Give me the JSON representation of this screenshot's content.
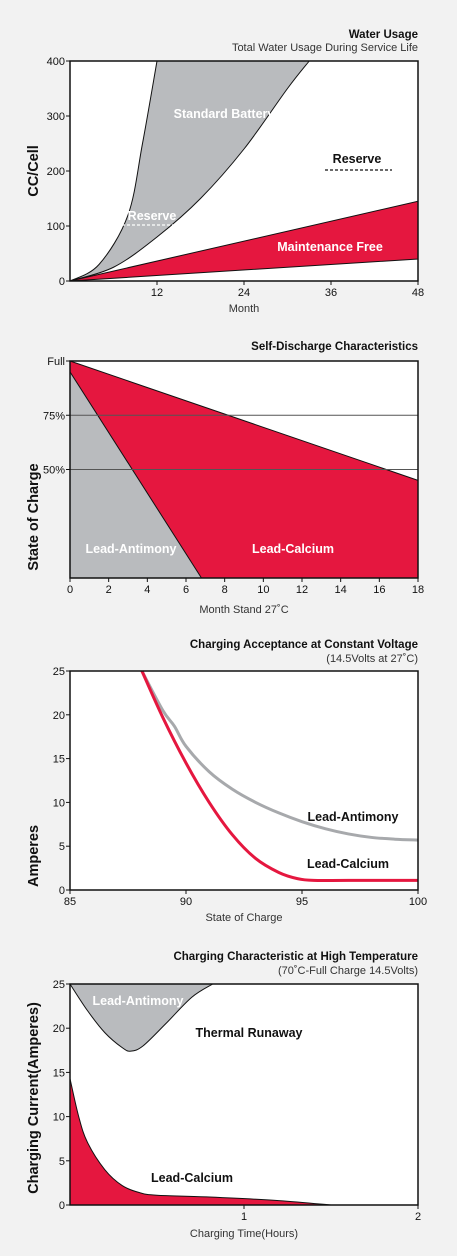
{
  "colors": {
    "red": "#e5173f",
    "gray": "#b9bbbe",
    "grayline": "#a7a9ac",
    "frame": "#111111",
    "bg": "#f2f2f2"
  },
  "chart_data": [
    {
      "type": "area",
      "title": "Water Usage",
      "subtitle": "Total Water Usage During Service Life",
      "xlabel": "Month",
      "ylabel": "CC/Cell",
      "xlim": [
        0,
        48
      ],
      "ylim": [
        0,
        400
      ],
      "xticks": [
        12,
        24,
        36,
        48
      ],
      "yticks": [
        0,
        100,
        200,
        300,
        400
      ],
      "series": [
        {
          "name": "Standard Battery",
          "upper": [
            [
              0,
              0
            ],
            [
              4,
              30
            ],
            [
              8,
              120
            ],
            [
              10,
              250
            ],
            [
              12,
              400
            ]
          ],
          "lower": [
            [
              0,
              0
            ],
            [
              6,
              25
            ],
            [
              12,
              80
            ],
            [
              18,
              150
            ],
            [
              24,
              240
            ],
            [
              30,
              350
            ],
            [
              33,
              400
            ]
          ]
        },
        {
          "name": "Maintenance Free",
          "upper": [
            [
              0,
              0
            ],
            [
              48,
              145
            ]
          ],
          "lower": [
            [
              0,
              0
            ],
            [
              48,
              40
            ]
          ]
        }
      ],
      "labels": {
        "standard": "Standard Battery",
        "maintenance": "Maintenance Free",
        "reserve_left": "Reserve",
        "reserve_right": "Reserve"
      }
    },
    {
      "type": "area",
      "title": "Self-Discharge Characteristics",
      "xlabel": "Month Stand 27˚C",
      "ylabel": "State of Charge",
      "xlim": [
        0,
        18
      ],
      "ylim": [
        0,
        100
      ],
      "xticks": [
        0,
        2,
        4,
        6,
        8,
        10,
        12,
        14,
        16,
        18
      ],
      "yticks": [
        {
          "value": 50,
          "label": "50%"
        },
        {
          "value": 75,
          "label": "75%"
        },
        {
          "value": 100,
          "label": "Full"
        }
      ],
      "series": [
        {
          "name": "Lead-Calcium",
          "points": [
            [
              0,
              100
            ],
            [
              18,
              45
            ]
          ]
        },
        {
          "name": "Lead-Antimony",
          "points": [
            [
              0,
              95
            ],
            [
              6.8,
              0
            ]
          ]
        }
      ],
      "labels": {
        "antimony": "Lead-Antimony",
        "calcium": "Lead-Calcium"
      }
    },
    {
      "type": "line",
      "title": "Charging Acceptance at Constant Voltage",
      "subtitle": "(14.5Volts at 27˚C)",
      "xlabel": "State of Charge",
      "ylabel": "Amperes",
      "xlim": [
        85,
        100
      ],
      "ylim": [
        0,
        25
      ],
      "xticks": [
        85,
        90,
        95,
        100
      ],
      "yticks": [
        0,
        5,
        10,
        15,
        20,
        25
      ],
      "series": [
        {
          "name": "Lead-Antimony",
          "points": [
            [
              88.1,
              25
            ],
            [
              89,
              20.5
            ],
            [
              89.5,
              18.7
            ],
            [
              90,
              16.4
            ],
            [
              91,
              13.5
            ],
            [
              92,
              11.5
            ],
            [
              93,
              10
            ],
            [
              94,
              8.8
            ],
            [
              95,
              7.8
            ],
            [
              96,
              7
            ],
            [
              97,
              6.4
            ],
            [
              98,
              6
            ],
            [
              99,
              5.8
            ],
            [
              100,
              5.7
            ]
          ]
        },
        {
          "name": "Lead-Calcium",
          "points": [
            [
              88.1,
              25
            ],
            [
              89,
              19.7
            ],
            [
              90,
              14.5
            ],
            [
              91,
              10
            ],
            [
              92,
              6.3
            ],
            [
              93,
              3.6
            ],
            [
              94,
              2
            ],
            [
              94.8,
              1.3
            ],
            [
              95.5,
              1.1
            ],
            [
              97,
              1.1
            ],
            [
              100,
              1.1
            ]
          ]
        }
      ],
      "labels": {
        "antimony": "Lead-Antimony",
        "calcium": "Lead-Calcium"
      }
    },
    {
      "type": "area",
      "title": "Charging Characteristic at High Temperature",
      "subtitle": "(70˚C-Full Charge 14.5Volts)",
      "xlabel": "Charging Time(Hours)",
      "ylabel": "Charging Current(Amperes)",
      "xlim": [
        0,
        2
      ],
      "ylim": [
        0,
        25
      ],
      "xticks": [
        1,
        2
      ],
      "yticks": [
        0,
        5,
        10,
        15,
        20,
        25
      ],
      "series": [
        {
          "name": "Lead-Antimony",
          "points": [
            [
              0,
              25
            ],
            [
              0.1,
              22
            ],
            [
              0.2,
              19.5
            ],
            [
              0.3,
              17.8
            ],
            [
              0.35,
              17.4
            ],
            [
              0.42,
              18
            ],
            [
              0.55,
              20.5
            ],
            [
              0.7,
              23.5
            ],
            [
              0.82,
              25
            ]
          ]
        },
        {
          "name": "Lead-Calcium",
          "points": [
            [
              0,
              14.3
            ],
            [
              0.05,
              10
            ],
            [
              0.1,
              7.1
            ],
            [
              0.2,
              4
            ],
            [
              0.3,
              2.2
            ],
            [
              0.4,
              1.4
            ],
            [
              0.5,
              1.1
            ],
            [
              0.8,
              0.9
            ],
            [
              1.2,
              0.5
            ],
            [
              1.5,
              0
            ]
          ]
        }
      ],
      "labels": {
        "antimony": "Lead-Antimony",
        "runaway": "Thermal Runaway",
        "calcium": "Lead-Calcium"
      }
    }
  ]
}
